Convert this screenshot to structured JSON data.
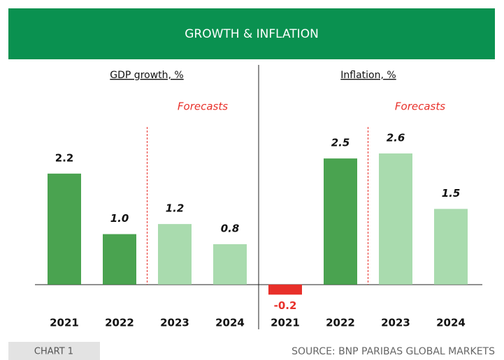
{
  "header": {
    "title": "GROWTH & INFLATION"
  },
  "chart_data": [
    {
      "type": "bar",
      "title": "GDP growth, %",
      "annotation": "Forecasts",
      "categories": [
        "2021",
        "2022",
        "2023",
        "2024"
      ],
      "values": [
        2.2,
        1.0,
        1.2,
        0.8
      ],
      "value_labels": [
        "2.2",
        "1.0",
        "1.2",
        "0.8"
      ],
      "colors": [
        "#4aa350",
        "#4aa350",
        "#a9dbae",
        "#a9dbae"
      ],
      "ylim": [
        -0.5,
        3.0
      ]
    },
    {
      "type": "bar",
      "title": "Inflation, %",
      "annotation": "Forecasts",
      "categories": [
        "2021",
        "2022",
        "2023",
        "2024"
      ],
      "values": [
        -0.2,
        2.5,
        2.6,
        1.5
      ],
      "value_labels": [
        "-0.2",
        "2.5",
        "2.6",
        "1.5"
      ],
      "colors": [
        "#e8302a",
        "#4aa350",
        "#a9dbae",
        "#a9dbae"
      ],
      "ylim": [
        -0.5,
        3.0
      ]
    }
  ],
  "footer": {
    "label": "CHART 1",
    "source": "SOURCE: BNP PARIBAS GLOBAL MARKETS"
  }
}
